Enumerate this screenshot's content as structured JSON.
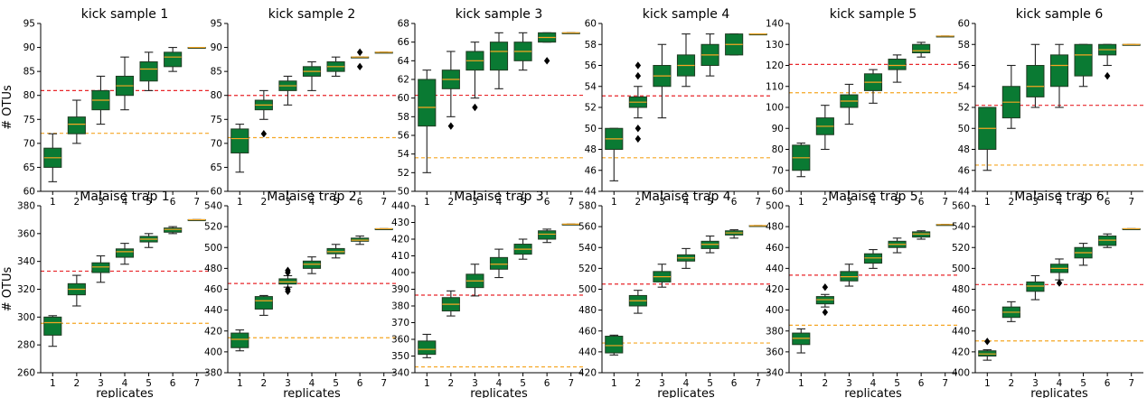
{
  "chart_data": [
    {
      "type": "box",
      "title": "kick sample 1",
      "ylabel": "# OTUs",
      "xlabel": "",
      "categories": [
        "1",
        "2",
        "3",
        "4",
        "5",
        "6",
        "7"
      ],
      "ylim": [
        60,
        95
      ],
      "yticks": [
        60,
        65,
        70,
        75,
        80,
        85,
        90,
        95
      ],
      "boxes": [
        {
          "min": 62,
          "q1": 65,
          "median": 67,
          "q3": 69,
          "max": 72
        },
        {
          "min": 70,
          "q1": 72,
          "median": 74,
          "q3": 75.5,
          "max": 79
        },
        {
          "min": 74,
          "q1": 77,
          "median": 79,
          "q3": 81,
          "max": 84
        },
        {
          "min": 77,
          "q1": 80,
          "median": 82,
          "q3": 84,
          "max": 88
        },
        {
          "min": 81,
          "q1": 83,
          "median": 85.5,
          "q3": 87,
          "max": 89
        },
        {
          "min": 85,
          "q1": 86,
          "median": 88,
          "q3": 89,
          "max": 90
        },
        {
          "min": 90,
          "q1": 90,
          "median": 90,
          "q3": 90,
          "max": 90
        }
      ],
      "outliers": [],
      "ref_lines": [
        {
          "color": "#e8262a",
          "y": 81
        },
        {
          "color": "#f5a623",
          "y": 72.1
        }
      ]
    },
    {
      "type": "box",
      "title": "kick sample 2",
      "ylabel": "",
      "xlabel": "",
      "categories": [
        "1",
        "2",
        "3",
        "4",
        "5",
        "6",
        "7"
      ],
      "ylim": [
        60,
        95
      ],
      "yticks": [
        60,
        65,
        70,
        75,
        80,
        85,
        90,
        95
      ],
      "boxes": [
        {
          "min": 64,
          "q1": 68,
          "median": 71,
          "q3": 73,
          "max": 74
        },
        {
          "min": 75,
          "q1": 77,
          "median": 78,
          "q3": 79,
          "max": 81
        },
        {
          "min": 78,
          "q1": 81,
          "median": 82,
          "q3": 83,
          "max": 84
        },
        {
          "min": 81,
          "q1": 84,
          "median": 85,
          "q3": 86,
          "max": 87
        },
        {
          "min": 84,
          "q1": 85,
          "median": 86,
          "q3": 87,
          "max": 88
        },
        {
          "min": 88,
          "q1": 88,
          "median": 88,
          "q3": 88,
          "max": 88
        },
        {
          "min": 89,
          "q1": 89,
          "median": 89,
          "q3": 89,
          "max": 89
        }
      ],
      "outliers": [
        {
          "x": 2,
          "y": 72
        },
        {
          "x": 6,
          "y": 86
        },
        {
          "x": 6,
          "y": 89
        }
      ],
      "ref_lines": [
        {
          "color": "#e8262a",
          "y": 80
        },
        {
          "color": "#f5a623",
          "y": 71.2
        }
      ]
    },
    {
      "type": "box",
      "title": "kick sample 3",
      "ylabel": "",
      "xlabel": "",
      "categories": [
        "1",
        "2",
        "3",
        "4",
        "5",
        "6",
        "7"
      ],
      "ylim": [
        50,
        68
      ],
      "yticks": [
        50,
        52,
        54,
        56,
        58,
        60,
        62,
        64,
        66,
        68
      ],
      "boxes": [
        {
          "min": 52,
          "q1": 57,
          "median": 59,
          "q3": 62,
          "max": 63
        },
        {
          "min": 58,
          "q1": 61,
          "median": 62,
          "q3": 63,
          "max": 65
        },
        {
          "min": 60,
          "q1": 63,
          "median": 64,
          "q3": 65,
          "max": 66
        },
        {
          "min": 61,
          "q1": 63,
          "median": 65,
          "q3": 66,
          "max": 67
        },
        {
          "min": 63,
          "q1": 64,
          "median": 65,
          "q3": 66,
          "max": 67
        },
        {
          "min": 66,
          "q1": 66,
          "median": 66.5,
          "q3": 67,
          "max": 67
        },
        {
          "min": 67,
          "q1": 67,
          "median": 67,
          "q3": 67,
          "max": 67
        }
      ],
      "outliers": [
        {
          "x": 2,
          "y": 57
        },
        {
          "x": 3,
          "y": 59
        },
        {
          "x": 6,
          "y": 64
        }
      ],
      "ref_lines": [
        {
          "color": "#e8262a",
          "y": 60.3
        },
        {
          "color": "#f5a623",
          "y": 53.6
        }
      ]
    },
    {
      "type": "box",
      "title": "kick sample 4",
      "ylabel": "",
      "xlabel": "",
      "categories": [
        "1",
        "2",
        "3",
        "4",
        "5",
        "6",
        "7"
      ],
      "ylim": [
        44,
        60
      ],
      "yticks": [
        44,
        46,
        48,
        50,
        52,
        54,
        56,
        58,
        60
      ],
      "boxes": [
        {
          "min": 45,
          "q1": 48,
          "median": 49,
          "q3": 50,
          "max": 50
        },
        {
          "min": 51,
          "q1": 52,
          "median": 52.5,
          "q3": 53,
          "max": 54
        },
        {
          "min": 51,
          "q1": 54,
          "median": 55,
          "q3": 56,
          "max": 58
        },
        {
          "min": 54,
          "q1": 55,
          "median": 56,
          "q3": 57,
          "max": 59
        },
        {
          "min": 55,
          "q1": 56,
          "median": 57,
          "q3": 58,
          "max": 59
        },
        {
          "min": 57,
          "q1": 57,
          "median": 58,
          "q3": 59,
          "max": 59
        },
        {
          "min": 59,
          "q1": 59,
          "median": 59,
          "q3": 59,
          "max": 59
        }
      ],
      "outliers": [
        {
          "x": 2,
          "y": 49
        },
        {
          "x": 2,
          "y": 50
        },
        {
          "x": 2,
          "y": 55
        },
        {
          "x": 2,
          "y": 56
        }
      ],
      "ref_lines": [
        {
          "color": "#e8262a",
          "y": 53.1
        },
        {
          "color": "#f5a623",
          "y": 47.2
        }
      ]
    },
    {
      "type": "box",
      "title": "kick sample 5",
      "ylabel": "",
      "xlabel": "",
      "categories": [
        "1",
        "2",
        "3",
        "4",
        "5",
        "6",
        "7"
      ],
      "ylim": [
        60,
        140
      ],
      "yticks": [
        60,
        70,
        80,
        90,
        100,
        110,
        120,
        130,
        140
      ],
      "boxes": [
        {
          "min": 67,
          "q1": 70,
          "median": 76,
          "q3": 82,
          "max": 83
        },
        {
          "min": 80,
          "q1": 87,
          "median": 91,
          "q3": 95,
          "max": 101
        },
        {
          "min": 92,
          "q1": 100,
          "median": 103,
          "q3": 106,
          "max": 111
        },
        {
          "min": 102,
          "q1": 108,
          "median": 112,
          "q3": 116,
          "max": 118
        },
        {
          "min": 112,
          "q1": 118,
          "median": 120,
          "q3": 123,
          "max": 125
        },
        {
          "min": 124,
          "q1": 126,
          "median": 127,
          "q3": 130,
          "max": 131
        },
        {
          "min": 134,
          "q1": 134,
          "median": 134,
          "q3": 134,
          "max": 134
        }
      ],
      "outliers": [],
      "ref_lines": [
        {
          "color": "#e8262a",
          "y": 120.5
        },
        {
          "color": "#f5a623",
          "y": 107
        }
      ]
    },
    {
      "type": "box",
      "title": "kick sample 6",
      "ylabel": "",
      "xlabel": "",
      "categories": [
        "1",
        "2",
        "3",
        "4",
        "5",
        "6",
        "7"
      ],
      "ylim": [
        44,
        60
      ],
      "yticks": [
        44,
        46,
        48,
        50,
        52,
        54,
        56,
        58,
        60
      ],
      "boxes": [
        {
          "min": 46,
          "q1": 48,
          "median": 50,
          "q3": 52,
          "max": 52
        },
        {
          "min": 50,
          "q1": 51,
          "median": 52.5,
          "q3": 54,
          "max": 56
        },
        {
          "min": 52,
          "q1": 53,
          "median": 54,
          "q3": 56,
          "max": 58
        },
        {
          "min": 52,
          "q1": 54,
          "median": 56,
          "q3": 57,
          "max": 58
        },
        {
          "min": 54,
          "q1": 55,
          "median": 57,
          "q3": 58,
          "max": 58
        },
        {
          "min": 56,
          "q1": 57,
          "median": 57.5,
          "q3": 58,
          "max": 58
        },
        {
          "min": 58,
          "q1": 58,
          "median": 58,
          "q3": 58,
          "max": 58
        }
      ],
      "outliers": [
        {
          "x": 6,
          "y": 55
        }
      ],
      "ref_lines": [
        {
          "color": "#e8262a",
          "y": 52.2
        },
        {
          "color": "#f5a623",
          "y": 46.5
        }
      ]
    },
    {
      "type": "box",
      "title": "Malaise trap 1",
      "ylabel": "# OTUs",
      "xlabel": "replicates",
      "categories": [
        "1",
        "2",
        "3",
        "4",
        "5",
        "6",
        "7"
      ],
      "ylim": [
        260,
        380
      ],
      "yticks": [
        260,
        280,
        300,
        320,
        340,
        360,
        380
      ],
      "boxes": [
        {
          "min": 279,
          "q1": 287,
          "median": 296,
          "q3": 300,
          "max": 301
        },
        {
          "min": 308,
          "q1": 316,
          "median": 320,
          "q3": 324,
          "max": 330
        },
        {
          "min": 325,
          "q1": 332,
          "median": 336,
          "q3": 339,
          "max": 344
        },
        {
          "min": 338,
          "q1": 343,
          "median": 347,
          "q3": 349,
          "max": 353
        },
        {
          "min": 350,
          "q1": 354,
          "median": 356,
          "q3": 358,
          "max": 360
        },
        {
          "min": 360,
          "q1": 361,
          "median": 363,
          "q3": 364,
          "max": 365
        },
        {
          "min": 370,
          "q1": 370,
          "median": 370,
          "q3": 370,
          "max": 370
        }
      ],
      "outliers": [],
      "ref_lines": [
        {
          "color": "#e8262a",
          "y": 333
        },
        {
          "color": "#f5a623",
          "y": 295.5
        }
      ]
    },
    {
      "type": "box",
      "title": "Malaise trap 2",
      "ylabel": "",
      "xlabel": "replicates",
      "categories": [
        "1",
        "2",
        "3",
        "4",
        "5",
        "6",
        "7"
      ],
      "ylim": [
        380,
        540
      ],
      "yticks": [
        380,
        400,
        420,
        440,
        460,
        480,
        500,
        520,
        540
      ],
      "boxes": [
        {
          "min": 401,
          "q1": 404,
          "median": 412,
          "q3": 418,
          "max": 421
        },
        {
          "min": 435,
          "q1": 441,
          "median": 449,
          "q3": 453,
          "max": 454
        },
        {
          "min": 462,
          "q1": 465,
          "median": 467,
          "q3": 470,
          "max": 473
        },
        {
          "min": 475,
          "q1": 480,
          "median": 484,
          "q3": 487,
          "max": 491
        },
        {
          "min": 490,
          "q1": 494,
          "median": 496,
          "q3": 499,
          "max": 503
        },
        {
          "min": 503,
          "q1": 506,
          "median": 507,
          "q3": 509,
          "max": 511
        },
        {
          "min": 518,
          "q1": 518,
          "median": 518,
          "q3": 518,
          "max": 518
        }
      ],
      "outliers": [
        {
          "x": 3,
          "y": 458
        },
        {
          "x": 3,
          "y": 460
        },
        {
          "x": 3,
          "y": 476
        },
        {
          "x": 3,
          "y": 478
        }
      ],
      "ref_lines": [
        {
          "color": "#e8262a",
          "y": 465.5
        },
        {
          "color": "#f5a623",
          "y": 413.5
        }
      ]
    },
    {
      "type": "box",
      "title": "Malaise trap 3",
      "ylabel": "",
      "xlabel": "replicates",
      "categories": [
        "1",
        "2",
        "3",
        "4",
        "5",
        "6",
        "7"
      ],
      "ylim": [
        340,
        440
      ],
      "yticks": [
        340,
        350,
        360,
        370,
        380,
        390,
        400,
        410,
        420,
        430,
        440
      ],
      "boxes": [
        {
          "min": 349,
          "q1": 351,
          "median": 354,
          "q3": 359,
          "max": 363
        },
        {
          "min": 374,
          "q1": 377,
          "median": 381,
          "q3": 385,
          "max": 389
        },
        {
          "min": 386,
          "q1": 391,
          "median": 395,
          "q3": 399,
          "max": 405
        },
        {
          "min": 397,
          "q1": 402,
          "median": 405,
          "q3": 409,
          "max": 414
        },
        {
          "min": 408,
          "q1": 411,
          "median": 414,
          "q3": 417,
          "max": 420
        },
        {
          "min": 418,
          "q1": 420,
          "median": 423,
          "q3": 425,
          "max": 426
        },
        {
          "min": 429,
          "q1": 429,
          "median": 429,
          "q3": 429,
          "max": 429
        }
      ],
      "outliers": [],
      "ref_lines": [
        {
          "color": "#e8262a",
          "y": 386.5
        },
        {
          "color": "#f5a623",
          "y": 343.5
        }
      ]
    },
    {
      "type": "box",
      "title": "Malaise trap 4",
      "ylabel": "",
      "xlabel": "replicates",
      "categories": [
        "1",
        "2",
        "3",
        "4",
        "5",
        "6",
        "7"
      ],
      "ylim": [
        420,
        580
      ],
      "yticks": [
        420,
        440,
        460,
        480,
        500,
        520,
        540,
        560,
        580
      ],
      "boxes": [
        {
          "min": 437,
          "q1": 439,
          "median": 446,
          "q3": 455,
          "max": 456
        },
        {
          "min": 477,
          "q1": 484,
          "median": 489,
          "q3": 494,
          "max": 499
        },
        {
          "min": 502,
          "q1": 507,
          "median": 512,
          "q3": 517,
          "max": 524
        },
        {
          "min": 520,
          "q1": 527,
          "median": 530,
          "q3": 533,
          "max": 539
        },
        {
          "min": 535,
          "q1": 539,
          "median": 543,
          "q3": 546,
          "max": 551
        },
        {
          "min": 549,
          "q1": 552,
          "median": 554,
          "q3": 556,
          "max": 557
        },
        {
          "min": 561,
          "q1": 561,
          "median": 561,
          "q3": 561,
          "max": 561
        }
      ],
      "outliers": [],
      "ref_lines": [
        {
          "color": "#e8262a",
          "y": 505
        },
        {
          "color": "#f5a623",
          "y": 448.5
        }
      ]
    },
    {
      "type": "box",
      "title": "Malaise trap 5",
      "ylabel": "",
      "xlabel": "replicates",
      "categories": [
        "1",
        "2",
        "3",
        "4",
        "5",
        "6",
        "7"
      ],
      "ylim": [
        340,
        500
      ],
      "yticks": [
        340,
        360,
        380,
        400,
        420,
        440,
        460,
        480,
        500
      ],
      "boxes": [
        {
          "min": 359,
          "q1": 367,
          "median": 373,
          "q3": 378,
          "max": 382
        },
        {
          "min": 403,
          "q1": 406,
          "median": 410,
          "q3": 413,
          "max": 415
        },
        {
          "min": 423,
          "q1": 428,
          "median": 432,
          "q3": 437,
          "max": 444
        },
        {
          "min": 440,
          "q1": 445,
          "median": 450,
          "q3": 454,
          "max": 458
        },
        {
          "min": 455,
          "q1": 460,
          "median": 463,
          "q3": 466,
          "max": 469
        },
        {
          "min": 468,
          "q1": 470,
          "median": 473,
          "q3": 475,
          "max": 476
        },
        {
          "min": 482,
          "q1": 482,
          "median": 482,
          "q3": 482,
          "max": 482
        }
      ],
      "outliers": [
        {
          "x": 2,
          "y": 398
        },
        {
          "x": 2,
          "y": 422
        }
      ],
      "ref_lines": [
        {
          "color": "#e8262a",
          "y": 433.5
        },
        {
          "color": "#f5a623",
          "y": 385.5
        }
      ]
    },
    {
      "type": "box",
      "title": "Malaise trap 6",
      "ylabel": "",
      "xlabel": "replicates",
      "categories": [
        "1",
        "2",
        "3",
        "4",
        "5",
        "6",
        "7"
      ],
      "ylim": [
        400,
        560
      ],
      "yticks": [
        400,
        420,
        440,
        460,
        480,
        500,
        520,
        540,
        560
      ],
      "boxes": [
        {
          "min": 412,
          "q1": 416,
          "median": 418,
          "q3": 421,
          "max": 422
        },
        {
          "min": 449,
          "q1": 453,
          "median": 458,
          "q3": 463,
          "max": 468
        },
        {
          "min": 470,
          "q1": 478,
          "median": 483,
          "q3": 487,
          "max": 493
        },
        {
          "min": 489,
          "q1": 496,
          "median": 500,
          "q3": 504,
          "max": 509
        },
        {
          "min": 503,
          "q1": 510,
          "median": 515,
          "q3": 520,
          "max": 524
        },
        {
          "min": 520,
          "q1": 522,
          "median": 527,
          "q3": 531,
          "max": 533
        },
        {
          "min": 538,
          "q1": 538,
          "median": 538,
          "q3": 538,
          "max": 538
        }
      ],
      "outliers": [
        {
          "x": 1,
          "y": 430
        },
        {
          "x": 4,
          "y": 486
        }
      ],
      "ref_lines": [
        {
          "color": "#e8262a",
          "y": 484.5
        },
        {
          "color": "#f5a623",
          "y": 430.5
        }
      ]
    }
  ],
  "colors": {
    "box_fill": "#0a7a33",
    "median": "#f5a623",
    "outlier": "#000000",
    "red_line": "#e8262a",
    "orange_line": "#f5a623"
  }
}
